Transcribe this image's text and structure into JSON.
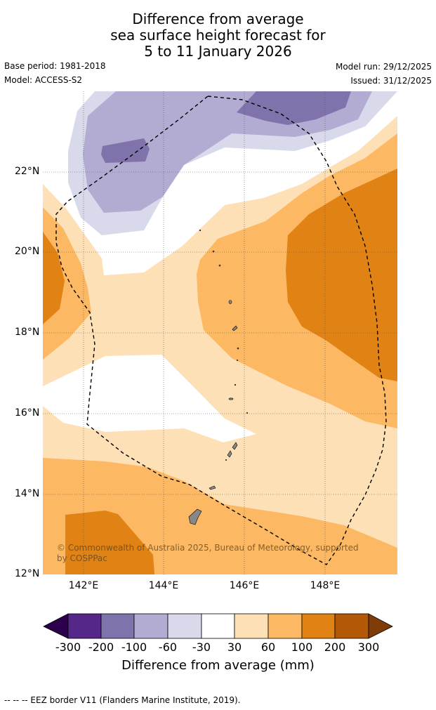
{
  "title": {
    "line1": "Difference from average",
    "line2": "sea surface height forecast for",
    "line3": "5 to 11 January 2026"
  },
  "meta": {
    "base_period": "Base period: 1981-2018",
    "model": "Model: ACCESS-S2",
    "model_run": "Model run: 29/12/2025",
    "issued": "Issued: 31/12/2025"
  },
  "map": {
    "lat_labels": [
      "22°N",
      "20°N",
      "18°N",
      "16°N",
      "14°N",
      "12°N"
    ],
    "lon_labels": [
      "142°E",
      "144°E",
      "146°E",
      "148°E"
    ],
    "copyright": "© Commonwealth of Australia 2025, Bureau of Meteorology, supported by COSPPac",
    "colors": {
      "neg300": "#2d004b",
      "neg200": "#542788",
      "neg100": "#8073ac",
      "neg60": "#b2abd2",
      "neg30": "#d8daeb",
      "zero": "#ffffff",
      "pos30": "#fee0b6",
      "pos60": "#fdb863",
      "pos100": "#e08214",
      "pos200": "#b35806",
      "pos300": "#7f3b08",
      "land": "#888888",
      "grid": "#555555"
    }
  },
  "colorbar": {
    "ticks": [
      "-300",
      "-200",
      "-100",
      "-60",
      "-30",
      "30",
      "60",
      "100",
      "200",
      "300"
    ],
    "title": "Difference from average (mm)"
  },
  "footer": "--  --  -- EEZ border V11 (Flanders Marine Institute, 2019)."
}
